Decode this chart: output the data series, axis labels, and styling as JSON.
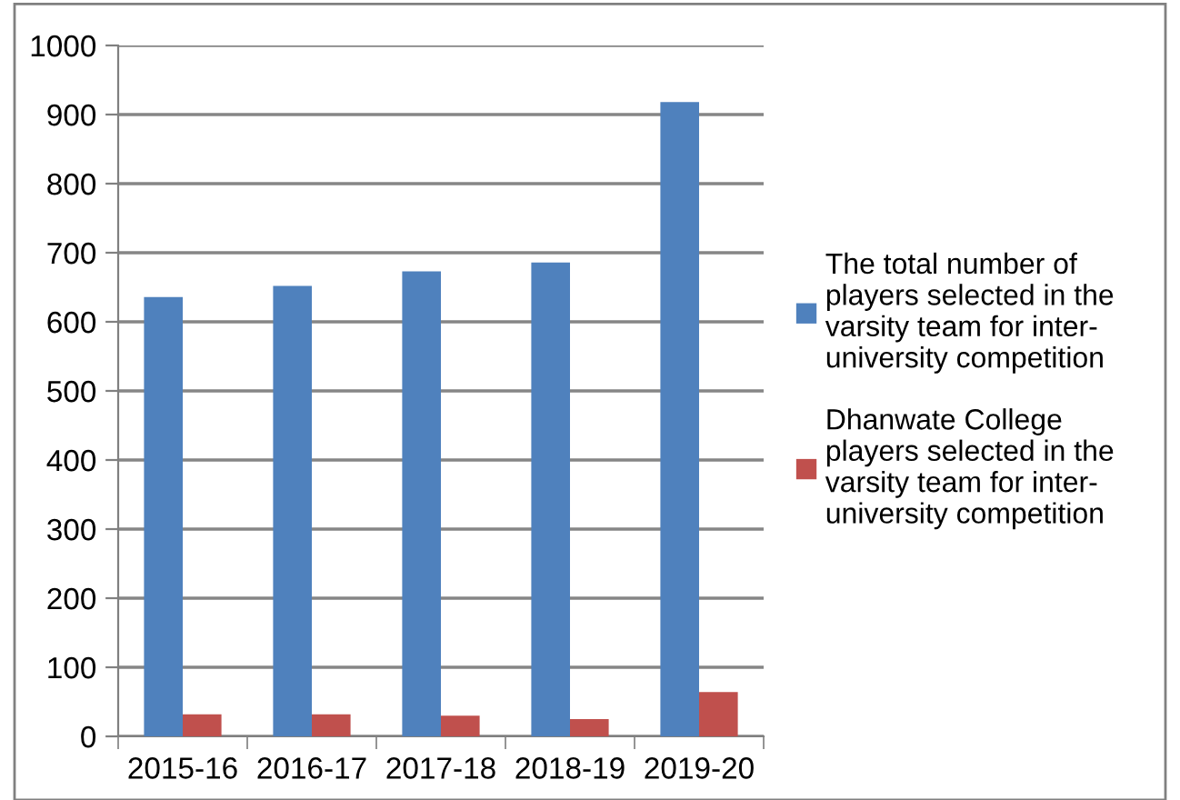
{
  "chart_data": {
    "type": "bar",
    "categories": [
      "2015-16",
      "2016-17",
      "2017-18",
      "2018-19",
      "2019-20"
    ],
    "series": [
      {
        "name": "The total number of\nplayers selected in the\nvarsity team for inter-\nuniversity competition",
        "color": "#4f81bd",
        "values": [
          636,
          652,
          673,
          686,
          918
        ]
      },
      {
        "name": "Dhanwate College\nplayers selected in the\nvarsity team for inter-\nuniversity competition",
        "color": "#c0504d",
        "values": [
          32,
          32,
          30,
          25,
          64
        ]
      }
    ],
    "ylim": [
      0,
      1000
    ],
    "yticks": [
      0,
      100,
      200,
      300,
      400,
      500,
      600,
      700,
      800,
      900,
      1000
    ],
    "grid": "y",
    "legend": "right"
  }
}
